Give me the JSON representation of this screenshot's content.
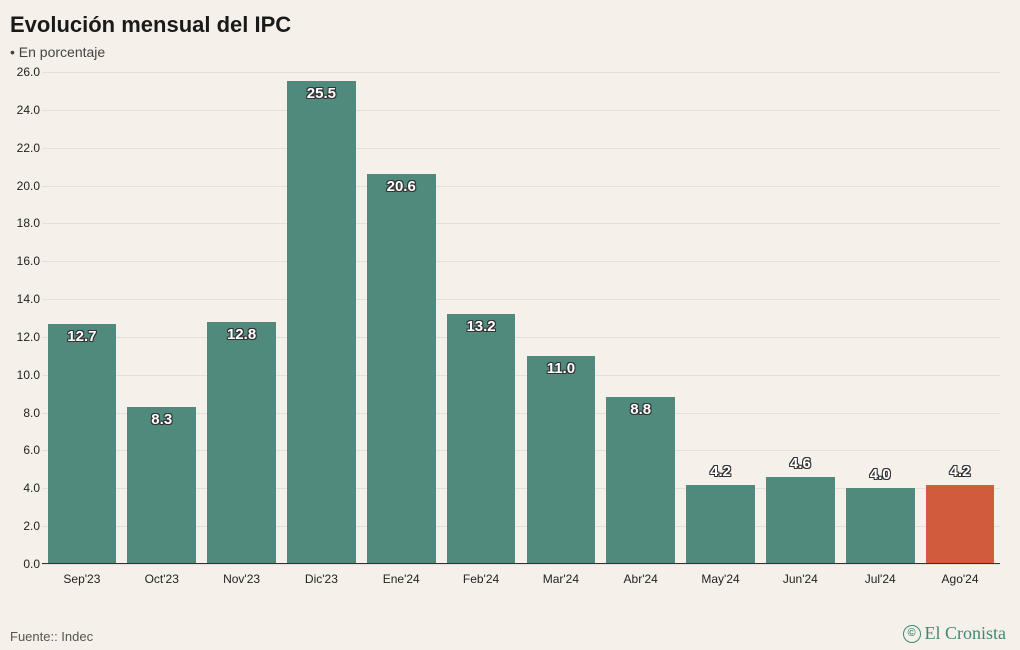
{
  "title": "Evolución mensual del IPC",
  "subtitle": "• En porcentaje",
  "source_label": "Fuente:: Indec",
  "brand": {
    "symbol": "©",
    "name": "El Cronista",
    "color": "#3b8a78"
  },
  "chart": {
    "type": "bar",
    "background_color": "#f5f1ea",
    "grid_color": "rgba(0,0,0,0.07)",
    "axis_color": "#333333",
    "xlabel_fontsize": 12,
    "ylabel_fontsize": 12,
    "value_label_fontsize": 15,
    "value_label_color": "#ffffff",
    "value_label_outline": "#333333",
    "bar_width_ratio": 0.86,
    "label_above_threshold": 6.0,
    "ylim": [
      0,
      26
    ],
    "ytick_step": 2,
    "yticks": [
      "0.0",
      "2.0",
      "4.0",
      "6.0",
      "8.0",
      "10.0",
      "12.0",
      "14.0",
      "16.0",
      "18.0",
      "20.0",
      "22.0",
      "24.0",
      "26.0"
    ],
    "categories": [
      "Sep'23",
      "Oct'23",
      "Nov'23",
      "Dic'23",
      "Ene'24",
      "Feb'24",
      "Mar'24",
      "Abr'24",
      "May'24",
      "Jun'24",
      "Jul'24",
      "Ago'24"
    ],
    "values": [
      12.7,
      8.3,
      12.8,
      25.5,
      20.6,
      13.2,
      11.0,
      8.8,
      4.2,
      4.6,
      4.0,
      4.2
    ],
    "value_labels": [
      "12.7",
      "8.3",
      "12.8",
      "25.5",
      "20.6",
      "13.2",
      "11.0",
      "8.8",
      "4.2",
      "4.6",
      "4.0",
      "4.2"
    ],
    "bar_colors": [
      "#4f8a7c",
      "#4f8a7c",
      "#4f8a7c",
      "#4f8a7c",
      "#4f8a7c",
      "#4f8a7c",
      "#4f8a7c",
      "#4f8a7c",
      "#4f8a7c",
      "#4f8a7c",
      "#4f8a7c",
      "#d15b3d"
    ]
  }
}
